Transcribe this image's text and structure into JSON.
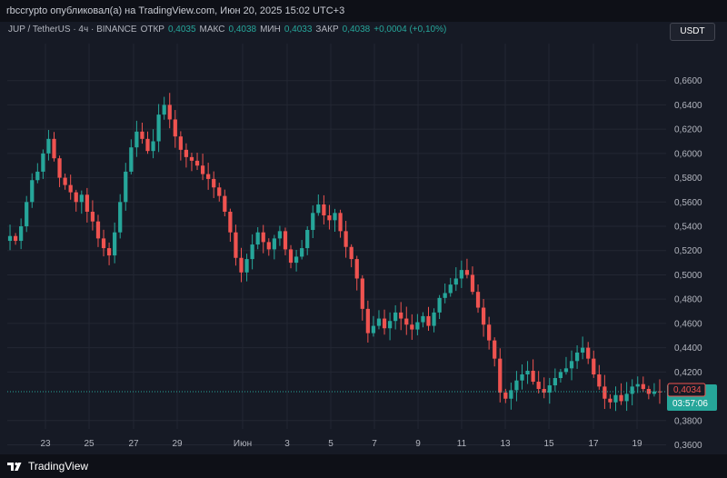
{
  "header": {
    "publisher": "rbccrypto опубликовал(а) на TradingView.com, Июн 20, 2025 15:02 UTC+3"
  },
  "legend": {
    "symbol": "JUP / TetherUS · 4ч · BINANCE",
    "open_label": "ОТКР",
    "open_value": "0,4035",
    "high_label": "МАКС",
    "high_value": "0,4038",
    "low_label": "МИН",
    "low_value": "0,4033",
    "close_label": "ЗАКР",
    "close_value": "0,4038",
    "change": "+0,0004 (+0,10%)"
  },
  "unit_button": "USDT",
  "footer": {
    "brand": "TradingView"
  },
  "colors": {
    "background": "#161a25",
    "up": "#26a69a",
    "down": "#ef5350",
    "grid": "#232733"
  },
  "chart_data": {
    "type": "candlestick",
    "x_ticks": [
      "23",
      "25",
      "27",
      "29",
      "Июн",
      "3",
      "5",
      "7",
      "9",
      "11",
      "13",
      "15",
      "17",
      "19"
    ],
    "y_ticks": [
      "0,6600",
      "0,6400",
      "0,6200",
      "0,6000",
      "0,5800",
      "0,5600",
      "0,5400",
      "0,5200",
      "0,5000",
      "0,4800",
      "0,4600",
      "0,4400",
      "0,4200",
      "0,3800",
      "0,3600"
    ],
    "ylim": [
      0.352,
      0.675
    ],
    "last_price": "0,4038",
    "countdown": "03:57:06",
    "bid_price": "0,4034",
    "closes": [
      0.532,
      0.528,
      0.54,
      0.56,
      0.578,
      0.585,
      0.6,
      0.612,
      0.596,
      0.58,
      0.574,
      0.568,
      0.56,
      0.566,
      0.552,
      0.544,
      0.53,
      0.522,
      0.516,
      0.535,
      0.56,
      0.585,
      0.605,
      0.618,
      0.612,
      0.602,
      0.61,
      0.632,
      0.64,
      0.628,
      0.614,
      0.603,
      0.597,
      0.594,
      0.59,
      0.583,
      0.579,
      0.572,
      0.565,
      0.552,
      0.535,
      0.514,
      0.502,
      0.513,
      0.525,
      0.535,
      0.527,
      0.521,
      0.53,
      0.536,
      0.521,
      0.51,
      0.515,
      0.522,
      0.537,
      0.551,
      0.558,
      0.549,
      0.545,
      0.551,
      0.536,
      0.523,
      0.513,
      0.497,
      0.472,
      0.452,
      0.458,
      0.464,
      0.456,
      0.462,
      0.469,
      0.464,
      0.459,
      0.455,
      0.461,
      0.466,
      0.458,
      0.469,
      0.481,
      0.485,
      0.492,
      0.497,
      0.504,
      0.5,
      0.486,
      0.473,
      0.459,
      0.446,
      0.431,
      0.403,
      0.398,
      0.405,
      0.413,
      0.418,
      0.421,
      0.412,
      0.406,
      0.403,
      0.409,
      0.415,
      0.42,
      0.423,
      0.429,
      0.436,
      0.44,
      0.431,
      0.418,
      0.408,
      0.398,
      0.395,
      0.401,
      0.396,
      0.402,
      0.408,
      0.41,
      0.406,
      0.402,
      0.404,
      0.4038
    ]
  }
}
